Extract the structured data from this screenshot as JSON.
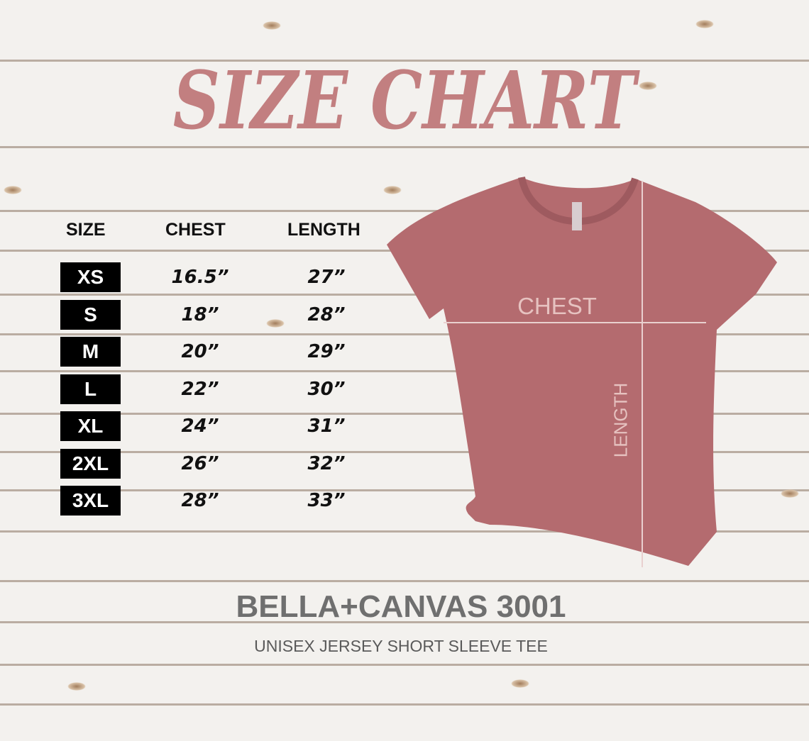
{
  "title": "SIZE CHART",
  "table": {
    "headers": [
      "SIZE",
      "CHEST",
      "LENGTH"
    ],
    "rows": [
      {
        "size": "XS",
        "chest": "16.5”",
        "length": "27”"
      },
      {
        "size": "S",
        "chest": "18”",
        "length": "28”"
      },
      {
        "size": "M",
        "chest": "20”",
        "length": "29”"
      },
      {
        "size": "L",
        "chest": "22”",
        "length": "30”"
      },
      {
        "size": "XL",
        "chest": "24”",
        "length": "31”"
      },
      {
        "size": "2XL",
        "chest": "26”",
        "length": "32”"
      },
      {
        "size": "3XL",
        "chest": "28”",
        "length": "33”"
      }
    ]
  },
  "diagram": {
    "chest_label": "CHEST",
    "length_label": "LENGTH",
    "shirt_color": "#b46b6f"
  },
  "brand": "BELLA+CANVAS 3001",
  "subtitle": "UNISEX JERSEY SHORT SLEEVE TEE",
  "colors": {
    "title": "#c27f80",
    "badge": "#000000",
    "brand": "#6f6f6f"
  }
}
